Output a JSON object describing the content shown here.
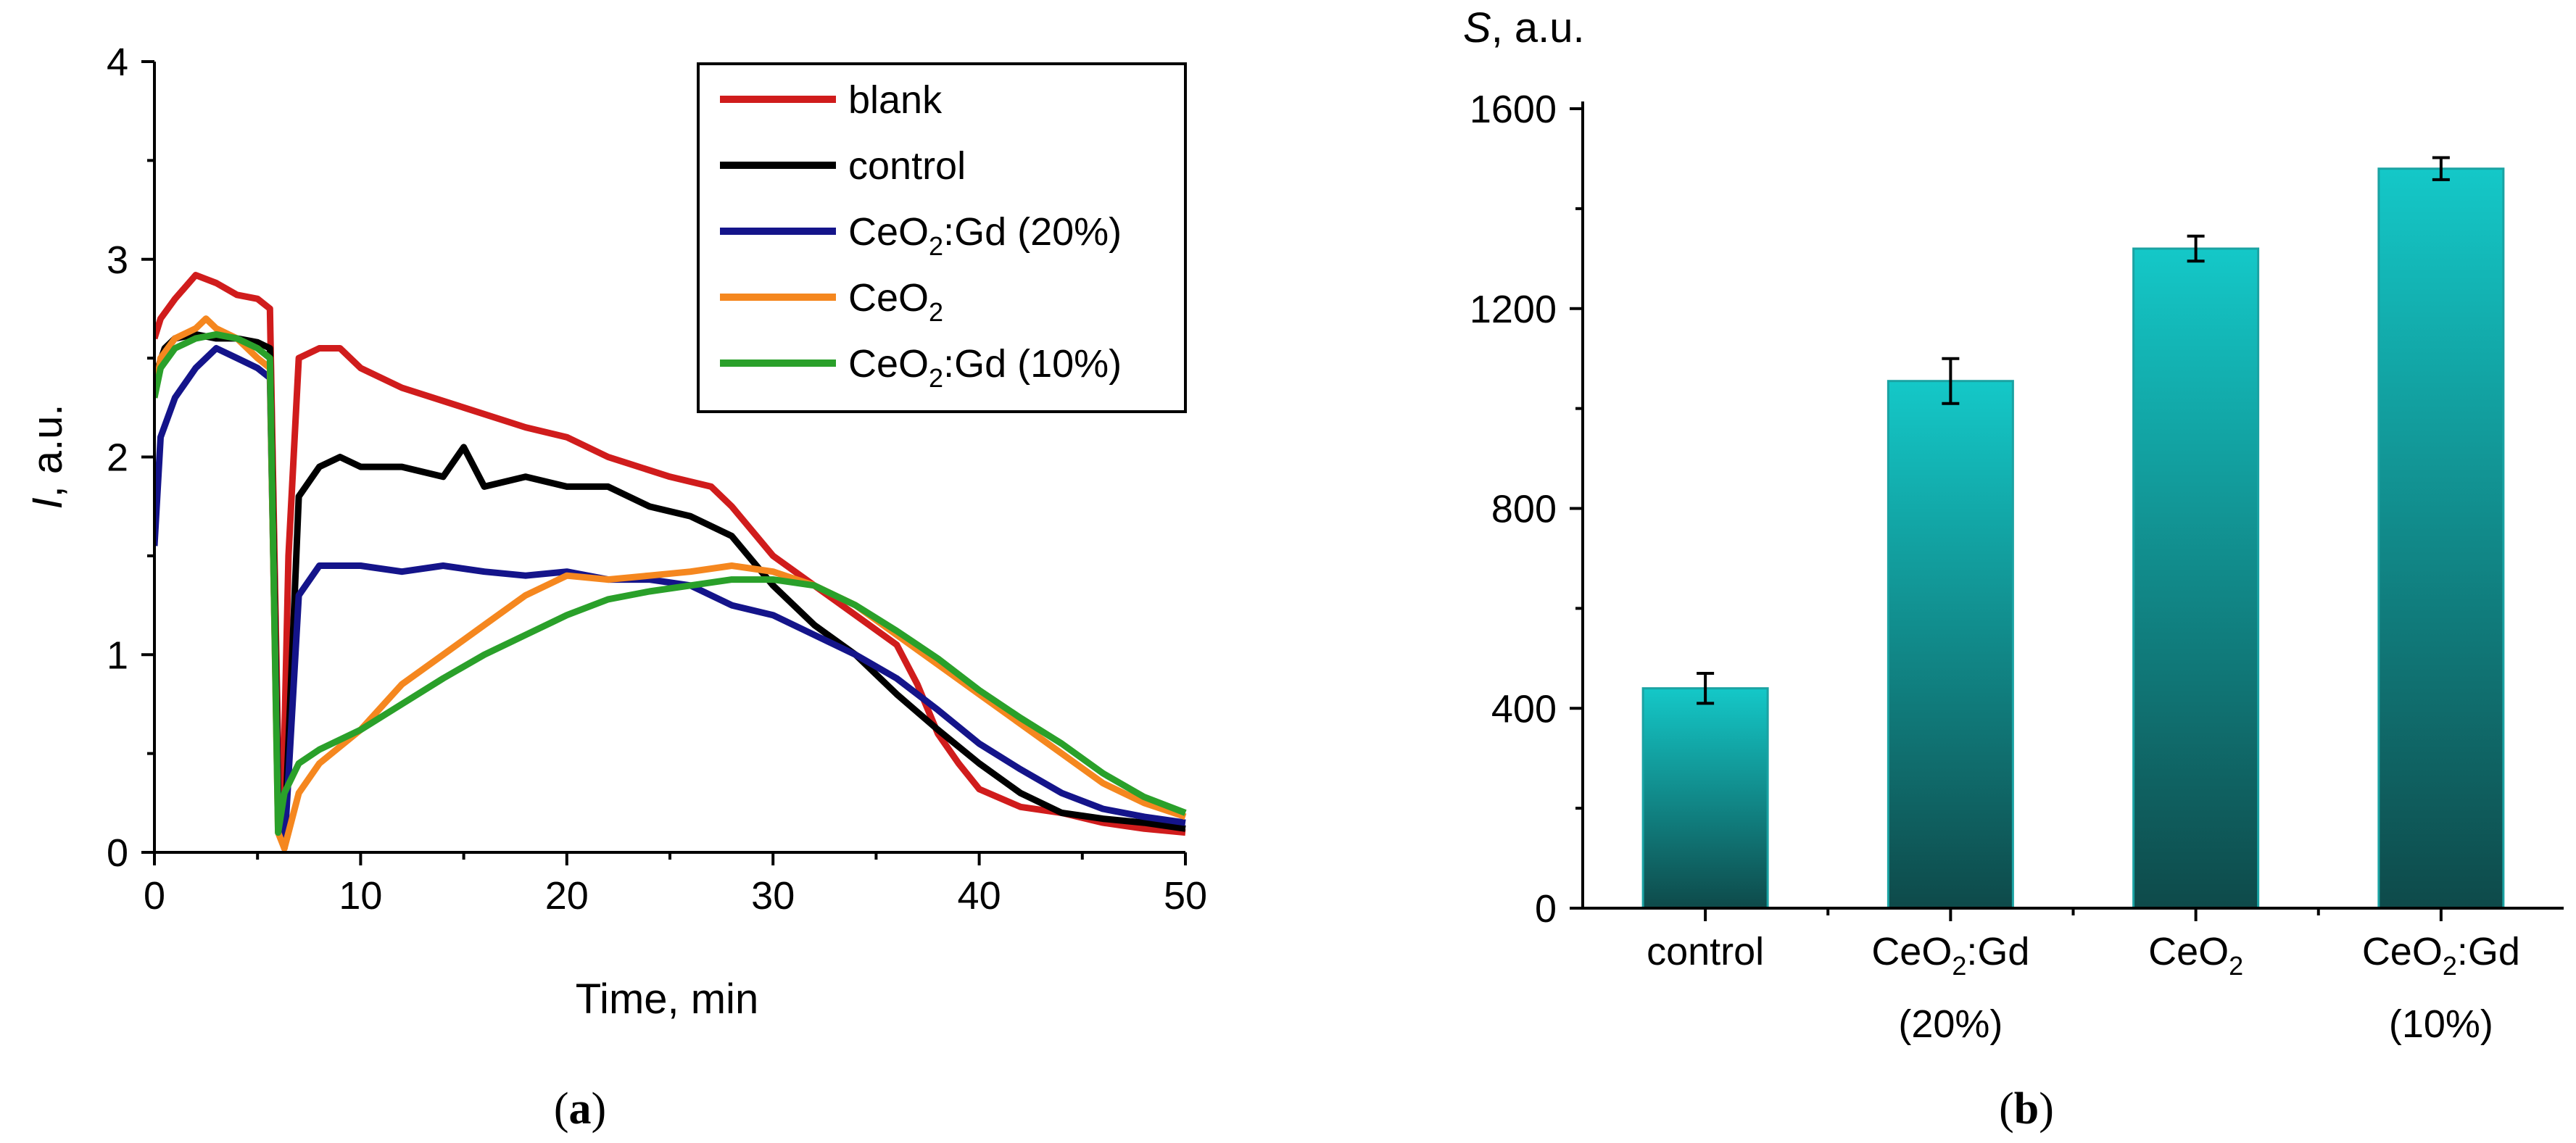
{
  "chart_data": [
    {
      "panel_label": "(a)",
      "type": "line",
      "xlabel": "Time, min",
      "ylabel": "I",
      "ylabel_unit": ", a.u.",
      "xlim": [
        0,
        50
      ],
      "ylim": [
        0,
        4
      ],
      "xticks": [
        "0",
        "10",
        "20",
        "30",
        "40",
        "50"
      ],
      "yticks": [
        "0",
        "1",
        "2",
        "3",
        "4"
      ],
      "legend_position": "top-right",
      "series": [
        {
          "name": "blank",
          "label_main": "blank",
          "label_sub": "",
          "label_tail": "",
          "color": "#d01c1c",
          "x": [
            0,
            0.3,
            1,
            2,
            3,
            4,
            5,
            5.6,
            6.0,
            6.2,
            6.5,
            7,
            8,
            9,
            10,
            12,
            15,
            18,
            20,
            22,
            25,
            27,
            28,
            30,
            32,
            34,
            36,
            37,
            38,
            39,
            40,
            42,
            44,
            46,
            48,
            50
          ],
          "y": [
            2.6,
            2.7,
            2.8,
            2.92,
            2.88,
            2.82,
            2.8,
            2.75,
            0.5,
            0.1,
            1.5,
            2.5,
            2.55,
            2.55,
            2.45,
            2.35,
            2.25,
            2.15,
            2.1,
            2.0,
            1.9,
            1.85,
            1.75,
            1.5,
            1.35,
            1.2,
            1.05,
            0.85,
            0.6,
            0.45,
            0.32,
            0.23,
            0.2,
            0.15,
            0.12,
            0.1
          ]
        },
        {
          "name": "control",
          "label_main": "control",
          "label_sub": "",
          "label_tail": "",
          "color": "#000000",
          "x": [
            0,
            0.5,
            1,
            2,
            3,
            4,
            5,
            5.6,
            6.0,
            6.3,
            7,
            8,
            9,
            10,
            12,
            14,
            15,
            16,
            18,
            20,
            22,
            24,
            26,
            28,
            30,
            32,
            34,
            36,
            38,
            40,
            42,
            44,
            46,
            48,
            50
          ],
          "y": [
            2.4,
            2.55,
            2.6,
            2.62,
            2.6,
            2.6,
            2.58,
            2.55,
            0.3,
            0.05,
            1.8,
            1.95,
            2.0,
            1.95,
            1.95,
            1.9,
            2.05,
            1.85,
            1.9,
            1.85,
            1.85,
            1.75,
            1.7,
            1.6,
            1.35,
            1.15,
            1.0,
            0.8,
            0.62,
            0.45,
            0.3,
            0.2,
            0.17,
            0.15,
            0.12
          ]
        },
        {
          "name": "CeO2:Gd (20%)",
          "label_main": "CeO",
          "label_sub": "2",
          "label_tail": ":Gd (20%)",
          "color": "#14148a",
          "x": [
            0,
            0.3,
            1,
            2,
            3,
            4,
            5,
            5.6,
            6.0,
            6.3,
            7,
            8,
            10,
            12,
            14,
            16,
            18,
            20,
            22,
            24,
            26,
            28,
            30,
            32,
            34,
            36,
            38,
            40,
            42,
            44,
            46,
            48,
            50
          ],
          "y": [
            1.55,
            2.1,
            2.3,
            2.45,
            2.55,
            2.5,
            2.45,
            2.4,
            0.2,
            0.02,
            1.3,
            1.45,
            1.45,
            1.42,
            1.45,
            1.42,
            1.4,
            1.42,
            1.38,
            1.38,
            1.35,
            1.25,
            1.2,
            1.1,
            1.0,
            0.88,
            0.72,
            0.55,
            0.42,
            0.3,
            0.22,
            0.18,
            0.15
          ]
        },
        {
          "name": "CeO2",
          "label_main": "CeO",
          "label_sub": "2",
          "label_tail": "",
          "color": "#f5871f",
          "x": [
            0,
            0.3,
            1,
            2,
            2.5,
            3,
            4,
            5,
            5.6,
            6.0,
            6.3,
            7,
            8,
            10,
            12,
            14,
            16,
            18,
            20,
            22,
            24,
            26,
            28,
            30,
            32,
            34,
            36,
            38,
            40,
            42,
            44,
            46,
            48,
            50
          ],
          "y": [
            2.3,
            2.5,
            2.6,
            2.65,
            2.7,
            2.65,
            2.6,
            2.5,
            2.45,
            0.1,
            0.02,
            0.3,
            0.45,
            0.62,
            0.85,
            1.0,
            1.15,
            1.3,
            1.4,
            1.38,
            1.4,
            1.42,
            1.45,
            1.42,
            1.35,
            1.25,
            1.1,
            0.95,
            0.8,
            0.65,
            0.5,
            0.35,
            0.25,
            0.18
          ]
        },
        {
          "name": "CeO2:Gd (10%)",
          "label_main": "CeO",
          "label_sub": "2",
          "label_tail": ":Gd (10%)",
          "color": "#2aa02a",
          "x": [
            0,
            0.3,
            1,
            2,
            3,
            4,
            5,
            5.6,
            6.0,
            6.3,
            7,
            8,
            10,
            12,
            14,
            16,
            18,
            20,
            22,
            24,
            26,
            28,
            30,
            32,
            34,
            36,
            38,
            40,
            42,
            44,
            46,
            48,
            50
          ],
          "y": [
            2.3,
            2.45,
            2.55,
            2.6,
            2.62,
            2.6,
            2.55,
            2.5,
            0.1,
            0.3,
            0.45,
            0.52,
            0.62,
            0.75,
            0.88,
            1.0,
            1.1,
            1.2,
            1.28,
            1.32,
            1.35,
            1.38,
            1.38,
            1.35,
            1.25,
            1.12,
            0.98,
            0.82,
            0.68,
            0.55,
            0.4,
            0.28,
            0.2
          ]
        }
      ]
    },
    {
      "panel_label": "(b)",
      "type": "bar",
      "ylabel": "S",
      "ylabel_unit": ", a.u.",
      "ylim": [
        0,
        1600
      ],
      "yticks": [
        "0",
        "400",
        "800",
        "1200",
        "1600"
      ],
      "bar_color_top": "#14c8c8",
      "bar_color_bottom": "#0e4a4a",
      "categories": [
        {
          "line1_main": "control",
          "line1_sub": "",
          "line1_tail": "",
          "line2": ""
        },
        {
          "line1_main": "CeO",
          "line1_sub": "2",
          "line1_tail": ":Gd",
          "line2": "(20%)"
        },
        {
          "line1_main": "CeO",
          "line1_sub": "2",
          "line1_tail": "",
          "line2": ""
        },
        {
          "line1_main": "CeO",
          "line1_sub": "2",
          "line1_tail": ":Gd",
          "line2": "(10%)"
        }
      ],
      "values": [
        440,
        1055,
        1320,
        1480
      ],
      "errors": [
        30,
        45,
        25,
        22
      ]
    }
  ]
}
